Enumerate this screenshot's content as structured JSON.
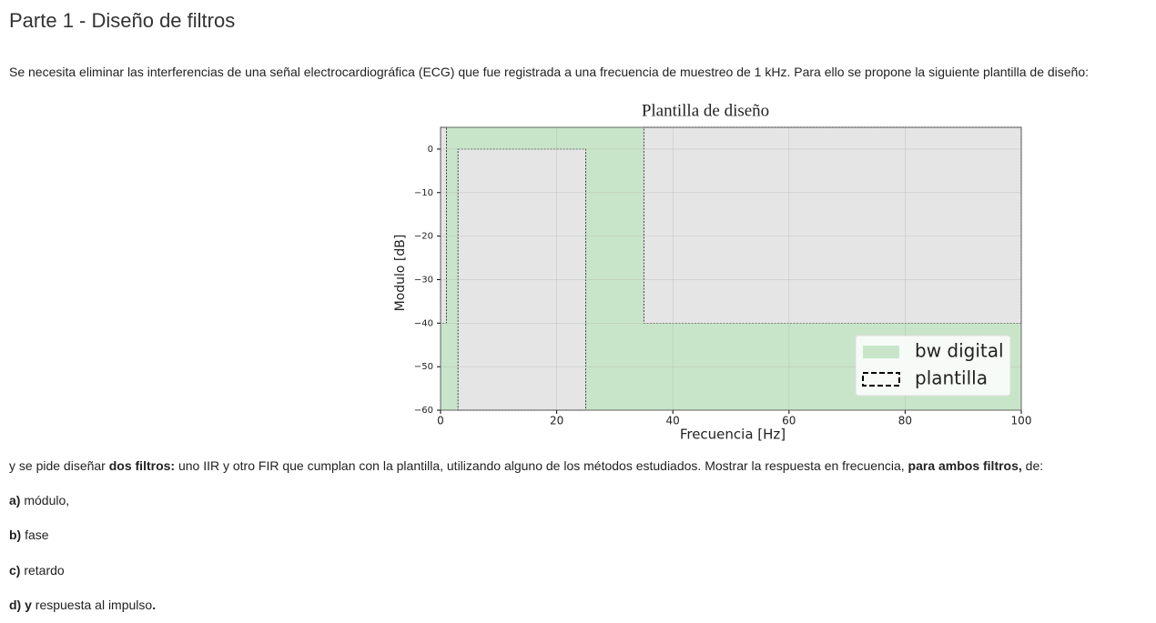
{
  "header": {
    "title": "Parte 1 - Diseño de filtros"
  },
  "intro": "Se necesita eliminar las interferencias de una señal electrocardiográfica (ECG) que fue registrada a una frecuencia de muestreo de 1 kHz. Para ello se propone la siguiente plantilla de diseño:",
  "chart_data": {
    "type": "template",
    "title": "Plantilla de diseño",
    "xlabel": "Frecuencia [Hz]",
    "ylabel": "Modulo [dB]",
    "xlim": [
      0,
      100
    ],
    "ylim": [
      -60,
      5
    ],
    "xticks": [
      0,
      20,
      40,
      60,
      80,
      100
    ],
    "yticks": [
      0,
      {
        "value": -10,
        "label": "−10"
      },
      {
        "value": -20,
        "label": "−20"
      },
      {
        "value": -30,
        "label": "−30"
      },
      {
        "value": -40,
        "label": "−40"
      },
      {
        "value": -50,
        "label": "−50"
      },
      {
        "value": -60,
        "label": "−60"
      }
    ],
    "grid": true,
    "legend": "lower right",
    "series": [
      {
        "name": "bw digital",
        "color": "#c9e5c9",
        "x": [
          0,
          35,
          35,
          100,
          100,
          0
        ],
        "y": [
          5,
          5,
          -40,
          -40,
          -60,
          -60
        ]
      },
      {
        "name": "plantilla",
        "color": "#e5e5e5",
        "rects": [
          {
            "x": [
              0,
              1
            ],
            "y": [
              -40,
              5
            ]
          },
          {
            "x": [
              3,
              25
            ],
            "y": [
              -60,
              0
            ]
          },
          {
            "x": [
              35,
              100
            ],
            "y": [
              -40,
              5
            ]
          }
        ]
      }
    ]
  },
  "request": [
    {
      "text": "y se pide diseñar ",
      "bold": false
    },
    {
      "text": "dos filtros:",
      "bold": true
    },
    {
      "text": " uno IIR y otro FIR que cumplan con la plantilla, utilizando alguno de los métodos estudiados. Mostrar la respuesta en frecuencia, ",
      "bold": false
    },
    {
      "text": "para ambos filtros,",
      "bold": true
    },
    {
      "text": " de:",
      "bold": false
    }
  ],
  "items": [
    [
      {
        "text": "a)",
        "bold": true
      },
      {
        "text": " módulo,",
        "bold": false
      }
    ],
    [
      {
        "text": "b)",
        "bold": true
      },
      {
        "text": " fase",
        "bold": false
      }
    ],
    [
      {
        "text": "c)",
        "bold": true
      },
      {
        "text": " retardo",
        "bold": false
      }
    ],
    [
      {
        "text": "d) y",
        "bold": true
      },
      {
        "text": " respuesta al impulso",
        "bold": false
      },
      {
        "text": ".",
        "bold": true
      }
    ]
  ]
}
